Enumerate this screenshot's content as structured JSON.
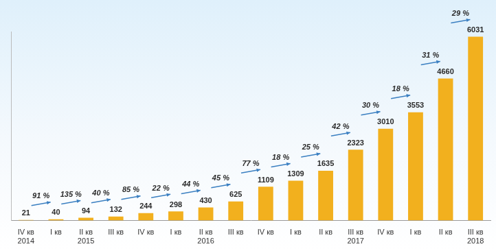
{
  "chart_data": {
    "type": "bar",
    "categories": [
      [
        "IV кв",
        "2014"
      ],
      [
        "I кв"
      ],
      [
        "II кв",
        "2015"
      ],
      [
        "III кв"
      ],
      [
        "IV кв"
      ],
      [
        "I кв"
      ],
      [
        "II кв",
        "2016"
      ],
      [
        "III кв"
      ],
      [
        "IV кв"
      ],
      [
        "I кв"
      ],
      [
        "II кв"
      ],
      [
        "III кв",
        "2017"
      ],
      [
        "IV кв"
      ],
      [
        "I кв"
      ],
      [
        "II кв"
      ],
      [
        "III кв",
        "2018"
      ]
    ],
    "values": [
      21,
      40,
      94,
      132,
      244,
      298,
      430,
      625,
      1109,
      1309,
      1635,
      2323,
      3010,
      3553,
      4660,
      6031
    ],
    "growth_labels": [
      "91 %",
      "135 %",
      "40 %",
      "85 %",
      "22 %",
      "44 %",
      "45 %",
      "77 %",
      "18 %",
      "25 %",
      "42 %",
      "30 %",
      "18 %",
      "31 %",
      "29 %"
    ],
    "color": "#f2b01e",
    "ylim": [
      0,
      6200
    ],
    "grid": false,
    "data_labels": true,
    "tick_labels": "x"
  }
}
